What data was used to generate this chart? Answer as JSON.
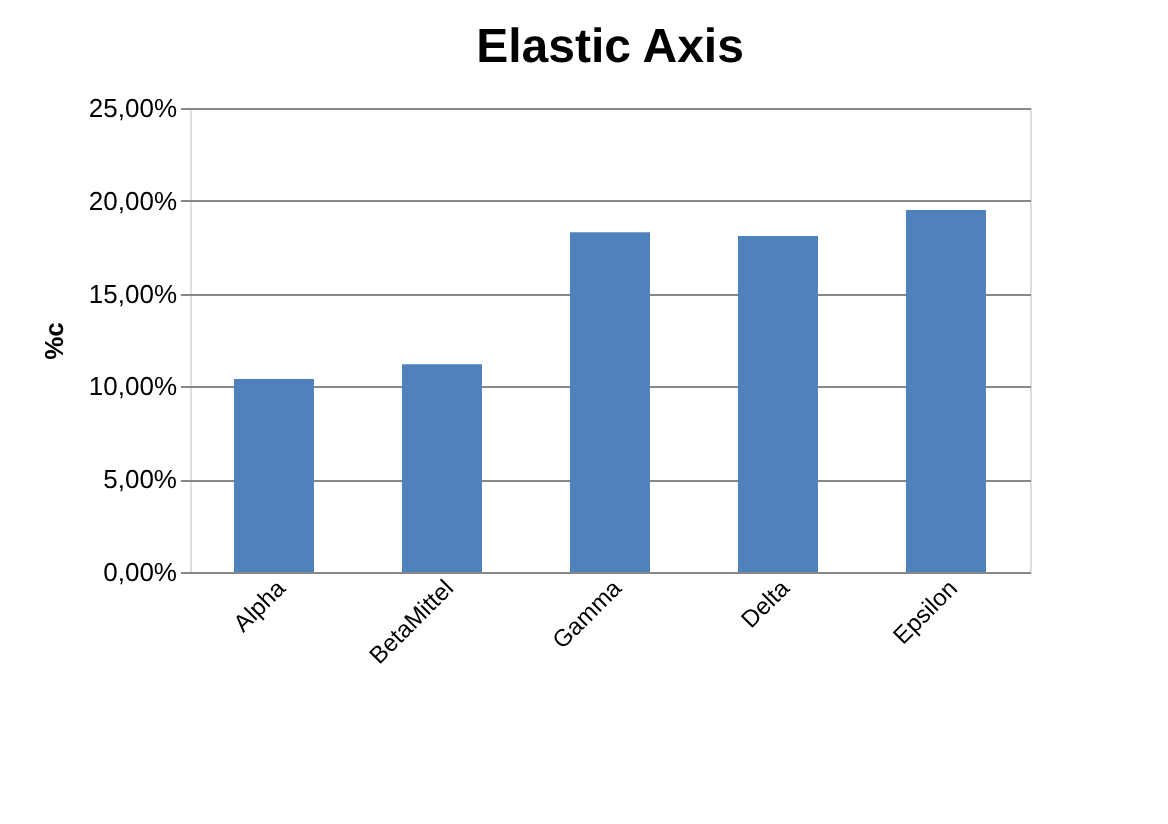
{
  "chart_data": {
    "type": "bar",
    "title": "Elastic Axis",
    "ylabel": "%c",
    "categories": [
      "Alpha",
      "BetaMittel",
      "Gamma",
      "Delta",
      "Epsilon"
    ],
    "values": [
      10.4,
      11.2,
      18.3,
      18.1,
      19.5
    ],
    "color": "#4f81bd",
    "ylim": [
      0,
      25
    ],
    "yticks": [
      {
        "value": 0,
        "label": "0,00%"
      },
      {
        "value": 5,
        "label": "5,00%"
      },
      {
        "value": 10,
        "label": "10,00%"
      },
      {
        "value": 15,
        "label": "15,00%"
      },
      {
        "value": 20,
        "label": "20,00%"
      },
      {
        "value": 25,
        "label": "25,00%"
      }
    ],
    "grid": "y"
  }
}
